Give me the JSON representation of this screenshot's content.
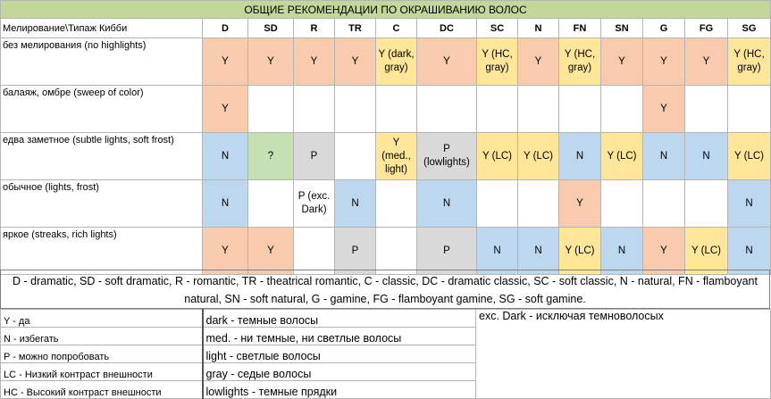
{
  "title": "ОБЩИЕ РЕКОМЕНДАЦИИ ПО ОКРАШИВАНИЮ ВОЛОС",
  "corner_header": "Мелирование\\Типаж Кибби",
  "columns": [
    "D",
    "SD",
    "R",
    "TR",
    "C",
    "DC",
    "SC",
    "N",
    "FN",
    "SN",
    "G",
    "FG",
    "SG"
  ],
  "rows": [
    {
      "label": "без мелирования (no highlights)",
      "cells": [
        {
          "text": "Y",
          "color": "Y"
        },
        {
          "text": "Y",
          "color": "Y"
        },
        {
          "text": "Y",
          "color": "Y"
        },
        {
          "text": "Y",
          "color": "Y"
        },
        {
          "text": "Y (dark, gray)",
          "color": "L"
        },
        {
          "text": "Y",
          "color": "Y"
        },
        {
          "text": "Y (HC, gray)",
          "color": "L"
        },
        {
          "text": "Y",
          "color": "Y"
        },
        {
          "text": "Y (HC, gray)",
          "color": "L"
        },
        {
          "text": "Y",
          "color": "Y"
        },
        {
          "text": "Y",
          "color": "Y"
        },
        {
          "text": "Y",
          "color": "Y"
        },
        {
          "text": "Y (HC, gray)",
          "color": "L"
        }
      ]
    },
    {
      "label": "балаяж, омбре (sweep of color)",
      "cells": [
        {
          "text": "Y",
          "color": "Y"
        },
        {
          "text": "",
          "color": "W"
        },
        {
          "text": "",
          "color": "W"
        },
        {
          "text": "",
          "color": "W"
        },
        {
          "text": "",
          "color": "W"
        },
        {
          "text": "",
          "color": "W"
        },
        {
          "text": "",
          "color": "W"
        },
        {
          "text": "",
          "color": "W"
        },
        {
          "text": "",
          "color": "W"
        },
        {
          "text": "",
          "color": "W"
        },
        {
          "text": "Y",
          "color": "Y"
        },
        {
          "text": "",
          "color": "W"
        },
        {
          "text": "",
          "color": "W"
        }
      ]
    },
    {
      "label": "едва заметное (subtle lights, soft frost)",
      "cells": [
        {
          "text": "N",
          "color": "N"
        },
        {
          "text": "?",
          "color": "Q"
        },
        {
          "text": "P",
          "color": "P"
        },
        {
          "text": "",
          "color": "W"
        },
        {
          "text": "Y (med., light)",
          "color": "L"
        },
        {
          "text": "P (lowlights)",
          "color": "P"
        },
        {
          "text": "Y (LC)",
          "color": "L"
        },
        {
          "text": "Y (LC)",
          "color": "L"
        },
        {
          "text": "N",
          "color": "N"
        },
        {
          "text": "Y (LC)",
          "color": "L"
        },
        {
          "text": "N",
          "color": "N"
        },
        {
          "text": "N",
          "color": "N"
        },
        {
          "text": "Y (LC)",
          "color": "L"
        }
      ]
    },
    {
      "label": "обычное (lights, frost)",
      "cells": [
        {
          "text": "N",
          "color": "N"
        },
        {
          "text": "",
          "color": "W"
        },
        {
          "text": "P (exc. Dark)",
          "color": "W"
        },
        {
          "text": "N",
          "color": "N"
        },
        {
          "text": "",
          "color": "W"
        },
        {
          "text": "N",
          "color": "N"
        },
        {
          "text": "",
          "color": "W"
        },
        {
          "text": "",
          "color": "W"
        },
        {
          "text": "Y",
          "color": "Y"
        },
        {
          "text": "",
          "color": "W"
        },
        {
          "text": "",
          "color": "W"
        },
        {
          "text": "",
          "color": "W"
        },
        {
          "text": "N",
          "color": "N"
        }
      ]
    },
    {
      "label": "яркое (streaks, rich lights)",
      "cells": [
        {
          "text": "Y",
          "color": "Y"
        },
        {
          "text": "Y",
          "color": "Y"
        },
        {
          "text": "",
          "color": "W"
        },
        {
          "text": "P",
          "color": "P"
        },
        {
          "text": "",
          "color": "W"
        },
        {
          "text": "P",
          "color": "P"
        },
        {
          "text": "N",
          "color": "N"
        },
        {
          "text": "N",
          "color": "N"
        },
        {
          "text": "Y (LC)",
          "color": "L"
        },
        {
          "text": "N",
          "color": "N"
        },
        {
          "text": "Y",
          "color": "Y"
        },
        {
          "text": "Y (LC)",
          "color": "L"
        },
        {
          "text": "N",
          "color": "N"
        }
      ]
    }
  ],
  "abbreviations": "D - dramatic, SD - soft dramatic, R - romantic, TR - theatrical romantic, C - classic, DC - dramatic classic, SC - soft classic, N - natural, FN - flamboyant natural, SN - soft natural, G - gamine, FG - flamboyant gamine, SG - soft gamine.",
  "legend": {
    "codes": [
      "Y - да",
      "N - избегать",
      "P - можно попробовать",
      "LC - Низкий контраст внешности",
      "HC - Высокий контраст внешности"
    ],
    "terms": [
      "dark - темные волосы",
      "med. - ни темные, ни светлые волосы",
      "light - светлые волосы",
      "gray - седые волосы",
      "lowlights - темные прядки"
    ],
    "extra": "exc. Dark - исключая темноволосых"
  },
  "colors": {
    "Y": "#f8cbad",
    "N": "#bdd7ee",
    "P": "#d9d9d9",
    "Q": "#c6e0b4",
    "L": "#ffe699",
    "W": "#ffffff",
    "title": "#c4d79b"
  }
}
